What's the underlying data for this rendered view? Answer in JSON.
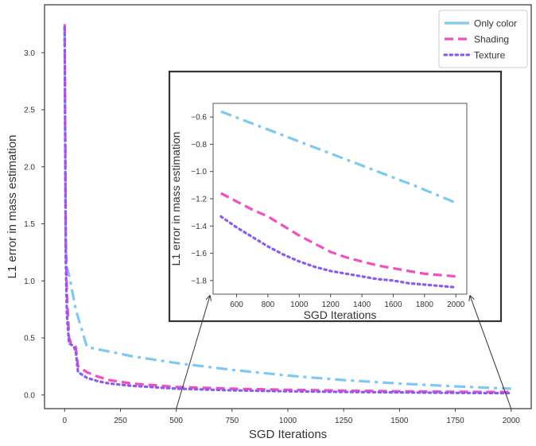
{
  "chart_data": [
    {
      "id": "main",
      "type": "line",
      "xlabel": "SGD Iterations",
      "ylabel": "L1 error in mass estimation",
      "xlim": [
        -90,
        2090
      ],
      "ylim": [
        -0.12,
        3.42
      ],
      "xticks": [
        0,
        250,
        500,
        750,
        1000,
        1250,
        1500,
        1750,
        2000
      ],
      "yticks": [
        0.0,
        0.5,
        1.0,
        1.5,
        2.0,
        2.5,
        3.0
      ],
      "grid": false,
      "legend": "top-right",
      "series": [
        {
          "name": "Only color",
          "color": "#7ec8f2",
          "dash": "dashdot",
          "x": [
            0,
            5,
            10,
            20,
            50,
            100,
            150,
            200,
            300,
            500,
            750,
            1000,
            1250,
            1500,
            1750,
            2000
          ],
          "y": [
            3.22,
            1.3,
            1.12,
            1.05,
            0.75,
            0.42,
            0.4,
            0.38,
            0.34,
            0.28,
            0.22,
            0.17,
            0.13,
            0.1,
            0.075,
            0.055
          ]
        },
        {
          "name": "Shading",
          "color": "#f24fc0",
          "dash": "dashed",
          "x": [
            0,
            5,
            10,
            20,
            30,
            40,
            50,
            60,
            100,
            150,
            200,
            300,
            500,
            750,
            1000,
            1250,
            1500,
            1750,
            2000
          ],
          "y": [
            3.25,
            1.4,
            0.9,
            0.5,
            0.45,
            0.44,
            0.42,
            0.25,
            0.2,
            0.16,
            0.13,
            0.1,
            0.07,
            0.055,
            0.045,
            0.038,
            0.032,
            0.028,
            0.025
          ]
        },
        {
          "name": "Texture",
          "color": "#8a5cf0",
          "dash": "dotted",
          "x": [
            0,
            5,
            10,
            20,
            30,
            40,
            50,
            60,
            100,
            150,
            200,
            300,
            500,
            750,
            1000,
            1250,
            1500,
            1750,
            2000
          ],
          "y": [
            3.22,
            1.2,
            0.7,
            0.45,
            0.44,
            0.43,
            0.38,
            0.2,
            0.15,
            0.12,
            0.1,
            0.08,
            0.055,
            0.04,
            0.032,
            0.026,
            0.022,
            0.018,
            0.015
          ]
        }
      ]
    },
    {
      "id": "inset",
      "type": "line",
      "xlabel": "SGD Iterations",
      "ylabel": "L1 error in mass estimation",
      "xlim": [
        450,
        2070
      ],
      "ylim": [
        -1.9,
        -0.5
      ],
      "xticks": [
        600,
        800,
        1000,
        1200,
        1400,
        1600,
        1800,
        2000
      ],
      "yticks": [
        -0.6,
        -0.8,
        -1.0,
        -1.2,
        -1.4,
        -1.6,
        -1.8
      ],
      "ytick_labels": [
        "−0.6",
        "−0.8",
        "−1.0",
        "−1.2",
        "−1.4",
        "−1.6",
        "−1.8"
      ],
      "grid": false,
      "series": [
        {
          "name": "Only color",
          "color": "#7ec8f2",
          "dash": "dashdot",
          "x": [
            500,
            750,
            1000,
            1250,
            1500,
            1750,
            2000
          ],
          "y": [
            -0.56,
            -0.67,
            -0.78,
            -0.89,
            -1.0,
            -1.11,
            -1.23
          ]
        },
        {
          "name": "Shading",
          "color": "#f24fc0",
          "dash": "dashed",
          "x": [
            500,
            600,
            700,
            800,
            900,
            1000,
            1100,
            1200,
            1300,
            1400,
            1500,
            1600,
            1700,
            1800,
            1900,
            2000
          ],
          "y": [
            -1.16,
            -1.22,
            -1.28,
            -1.33,
            -1.4,
            -1.47,
            -1.53,
            -1.59,
            -1.63,
            -1.66,
            -1.69,
            -1.71,
            -1.73,
            -1.75,
            -1.76,
            -1.77
          ]
        },
        {
          "name": "Texture",
          "color": "#8a5cf0",
          "dash": "dotted",
          "x": [
            500,
            600,
            700,
            800,
            900,
            1000,
            1100,
            1200,
            1300,
            1400,
            1500,
            1600,
            1700,
            1800,
            1900,
            2000
          ],
          "y": [
            -1.33,
            -1.41,
            -1.48,
            -1.55,
            -1.61,
            -1.66,
            -1.7,
            -1.73,
            -1.75,
            -1.77,
            -1.79,
            -1.8,
            -1.82,
            -1.83,
            -1.84,
            -1.85
          ]
        }
      ]
    }
  ]
}
